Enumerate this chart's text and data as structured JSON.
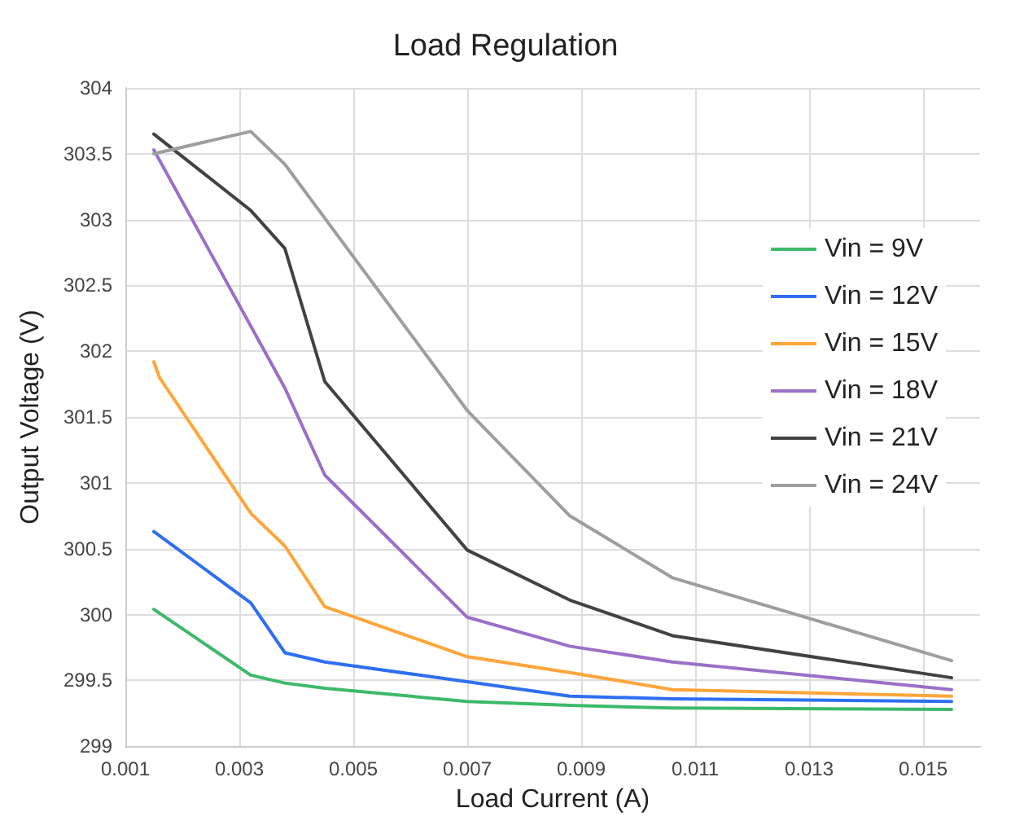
{
  "chart_data": {
    "type": "line",
    "title": "Load Regulation",
    "xlabel": "Load Current (A)",
    "ylabel": "Output Voltage (V)",
    "xlim": [
      0.001,
      0.016
    ],
    "xticks": [
      {
        "value": 0.001,
        "label": "0.001"
      },
      {
        "value": 0.003,
        "label": "0.003"
      },
      {
        "value": 0.005,
        "label": "0.005"
      },
      {
        "value": 0.007,
        "label": "0.007"
      },
      {
        "value": 0.009,
        "label": "0.009"
      },
      {
        "value": 0.011,
        "label": "0.011"
      },
      {
        "value": 0.013,
        "label": "0.013"
      },
      {
        "value": 0.015,
        "label": "0.015"
      }
    ],
    "ylim": [
      299,
      304
    ],
    "yticks": [
      299,
      299.5,
      300,
      300.5,
      301,
      301.5,
      302,
      302.5,
      303,
      303.5,
      304
    ],
    "grid": true,
    "legend": "right",
    "marker": "none",
    "line_style": "solid",
    "series": [
      {
        "name": "Vin = 9V",
        "color": "#3cba6a",
        "x": [
          0.0015,
          0.0032,
          0.0038,
          0.0045,
          0.007,
          0.0088,
          0.0106,
          0.0155
        ],
        "values": [
          300.04,
          299.54,
          299.48,
          299.44,
          299.34,
          299.31,
          299.29,
          299.28
        ]
      },
      {
        "name": "Vin = 12V",
        "color": "#2e6ff2",
        "x": [
          0.0015,
          0.0032,
          0.0038,
          0.0045,
          0.007,
          0.0088,
          0.0106,
          0.0155
        ],
        "values": [
          300.63,
          300.09,
          299.71,
          299.64,
          299.49,
          299.38,
          299.36,
          299.34
        ]
      },
      {
        "name": "Vin = 15V",
        "color": "#ffa53a",
        "x": [
          0.0015,
          0.0016,
          0.0032,
          0.0038,
          0.0045,
          0.007,
          0.0088,
          0.0106,
          0.0155
        ],
        "values": [
          301.92,
          301.8,
          300.77,
          300.52,
          300.06,
          299.68,
          299.56,
          299.43,
          299.38
        ]
      },
      {
        "name": "Vin = 18V",
        "color": "#9b6fc9",
        "x": [
          0.0015,
          0.0038,
          0.0045,
          0.007,
          0.0088,
          0.0106,
          0.0155
        ],
        "values": [
          303.53,
          301.72,
          301.06,
          299.98,
          299.76,
          299.64,
          299.43
        ]
      },
      {
        "name": "Vin = 21V",
        "color": "#424242",
        "x": [
          0.0015,
          0.0032,
          0.0038,
          0.0045,
          0.007,
          0.0088,
          0.0106,
          0.0155
        ],
        "values": [
          303.65,
          303.07,
          302.78,
          301.77,
          300.49,
          300.11,
          299.84,
          299.52
        ]
      },
      {
        "name": "Vin = 24V",
        "color": "#9e9e9e",
        "x": [
          0.0015,
          0.0032,
          0.0038,
          0.007,
          0.0088,
          0.0106,
          0.0155
        ],
        "values": [
          303.5,
          303.67,
          303.42,
          301.55,
          300.75,
          300.28,
          299.65
        ]
      }
    ]
  }
}
